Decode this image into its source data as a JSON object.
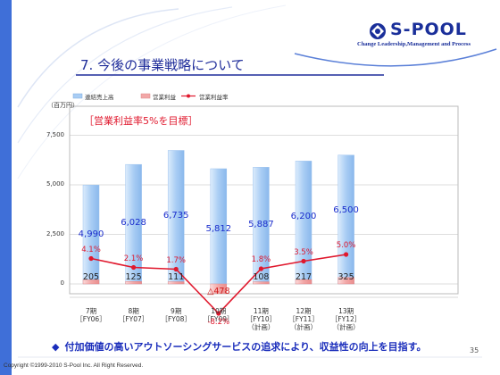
{
  "slide": {
    "title": "7. 今後の事業戦略について",
    "logo": {
      "name": "S-POOL",
      "tagline": "Change Leadership,Management and Process"
    },
    "target": "［営業利益率5%を目標］",
    "unit": "（百万円）",
    "footer_note": "付加価値の高いアウトソーシングサービスの追求により、収益性の向上を目指す。",
    "page_number": "35",
    "copyright": "Copyright ©1999-2010 S-Pool Inc. All Right Reserved.",
    "colors": {
      "accent_blue": "#1e2c9a",
      "bar_blue": "#a9cdf4",
      "bar_red": "#f2a7a7",
      "line_red": "#e0182d"
    }
  },
  "chart_data": {
    "type": "bar",
    "title": "",
    "xlabel": "",
    "ylabel": "（百万円）",
    "ylim": [
      -1000,
      8500
    ],
    "y_ticks": [
      "7,500",
      "5,000",
      "2,500",
      "0"
    ],
    "y_tick_values": [
      7500,
      5000,
      2500,
      0
    ],
    "grid": true,
    "legend_position": "top-left",
    "categories": [
      [
        "7期",
        "［FY06］"
      ],
      [
        "8期",
        "［FY07］"
      ],
      [
        "9期",
        "［FY08］"
      ],
      [
        "10期",
        "［FY09］"
      ],
      [
        "11期",
        "［FY10］",
        "（計画）"
      ],
      [
        "12期",
        "［FY11］",
        "（計画）"
      ],
      [
        "13期",
        "［FY12］",
        "（計画）"
      ]
    ],
    "series": [
      {
        "name": "連結売上高",
        "kind": "bar",
        "values": [
          4990,
          6028,
          6735,
          5812,
          5887,
          6200,
          6500
        ],
        "labels": [
          "4,990",
          "6,028",
          "6,735",
          "5,812",
          "5,887",
          "6,200",
          "6,500"
        ]
      },
      {
        "name": "営業利益",
        "kind": "bar",
        "values": [
          205,
          125,
          111,
          -478,
          108,
          217,
          325
        ],
        "labels": [
          "205",
          "125",
          "111",
          "△478",
          "108",
          "217",
          "325"
        ]
      },
      {
        "name": "営業利益率",
        "kind": "line",
        "unit": "%",
        "values": [
          4.1,
          2.1,
          1.7,
          -8.2,
          1.8,
          3.5,
          5.0
        ],
        "labels": [
          "4.1%",
          "2.1%",
          "1.7%",
          "-8.2%",
          "1.8%",
          "3.5%",
          "5.0%"
        ]
      }
    ]
  }
}
